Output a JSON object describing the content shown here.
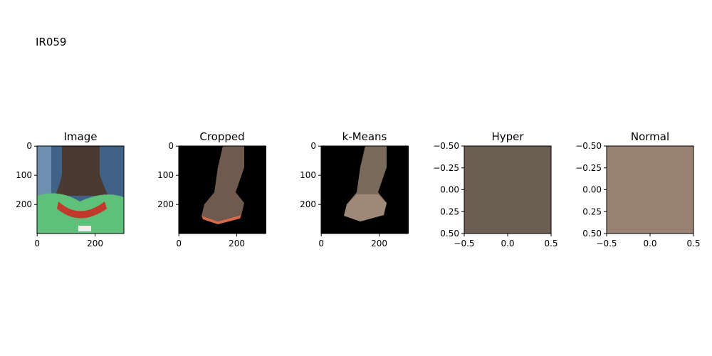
{
  "title": "IR059",
  "chart_data": [
    {
      "type": "image",
      "title": "Image",
      "xlim": [
        -0.5,
        299.5
      ],
      "ylim": [
        299.5,
        -0.5
      ],
      "xticks": [
        0,
        200
      ],
      "yticks": [
        0,
        100,
        200
      ]
    },
    {
      "type": "image",
      "title": "Cropped",
      "xlim": [
        -0.5,
        299.5
      ],
      "ylim": [
        299.5,
        -0.5
      ],
      "xticks": [
        0,
        200
      ],
      "yticks": [
        0,
        100,
        200
      ]
    },
    {
      "type": "image",
      "title": "k-Means",
      "xlim": [
        -0.5,
        299.5
      ],
      "ylim": [
        299.5,
        -0.5
      ],
      "xticks": [
        0,
        200
      ],
      "yticks": [
        0,
        100,
        200
      ]
    },
    {
      "type": "swatch",
      "title": "Hyper",
      "color": "#6b5e53",
      "xlim": [
        -0.5,
        0.5
      ],
      "ylim": [
        0.5,
        -0.5
      ],
      "xticks": [
        {
          "value": -0.5,
          "label": "−0.5"
        },
        {
          "value": 0,
          "label": "0.0"
        },
        {
          "value": 0.5,
          "label": "0.5"
        }
      ],
      "yticks": [
        {
          "value": -0.5,
          "label": "−0.50"
        },
        {
          "value": -0.25,
          "label": "−0.25"
        },
        {
          "value": 0,
          "label": "0.00"
        },
        {
          "value": 0.25,
          "label": "0.25"
        },
        {
          "value": 0.5,
          "label": "0.50"
        }
      ]
    },
    {
      "type": "swatch",
      "title": "Normal",
      "color": "#9a8272",
      "xlim": [
        -0.5,
        0.5
      ],
      "ylim": [
        0.5,
        -0.5
      ],
      "xticks": [
        {
          "value": -0.5,
          "label": "−0.5"
        },
        {
          "value": 0,
          "label": "0.0"
        },
        {
          "value": 0.5,
          "label": "0.5"
        }
      ],
      "yticks": [
        {
          "value": -0.5,
          "label": "−0.50"
        },
        {
          "value": -0.25,
          "label": "−0.25"
        },
        {
          "value": 0,
          "label": "0.00"
        },
        {
          "value": 0.25,
          "label": "0.25"
        },
        {
          "value": 0.5,
          "label": "0.50"
        }
      ]
    }
  ]
}
